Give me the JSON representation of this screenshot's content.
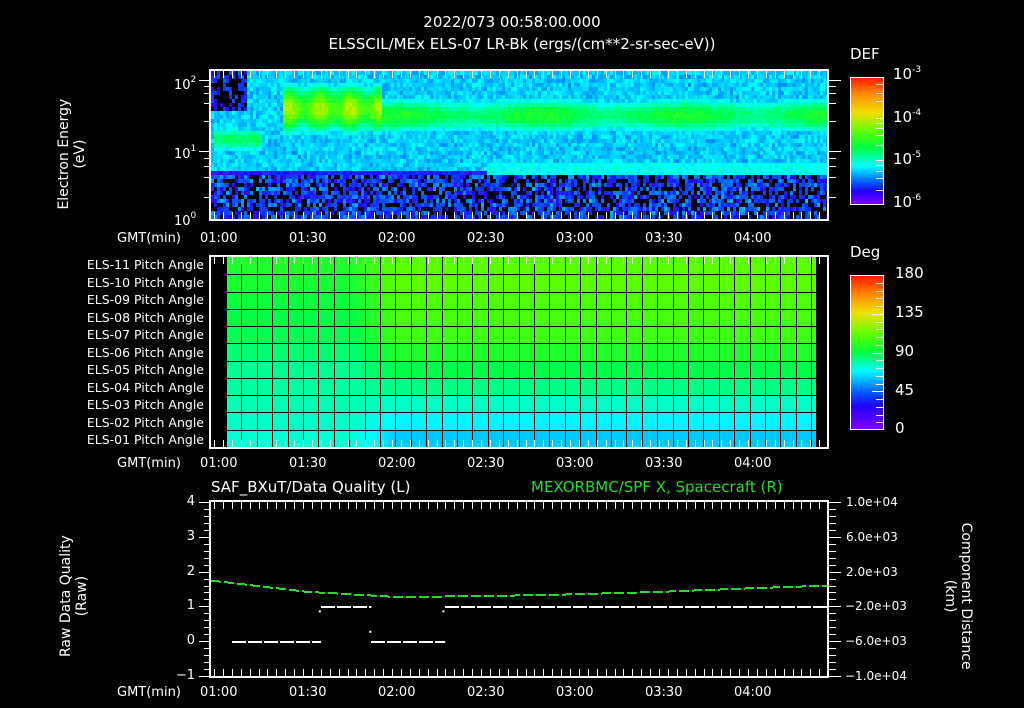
{
  "header": {
    "datetime": "2022/073 00:58:00.000",
    "subtitle": "ELSSCIL/MEx ELS-07 LR-Bk  (ergs/(cm**2-sr-sec-eV))"
  },
  "colors": {
    "background": "#000000",
    "axes": "#ffffff",
    "right_series": "#22dd22",
    "left_series": "#ffffff"
  },
  "time_axis": {
    "label": "GMT(min)",
    "ticks": [
      "01:00",
      "01:30",
      "02:00",
      "02:30",
      "03:00",
      "03:30",
      "04:00"
    ]
  },
  "panel_spectrogram": {
    "ylabel_line1": "Electron Energy",
    "ylabel_line2": "(eV)",
    "y_ticks": [
      {
        "base": "10",
        "exp": "2"
      },
      {
        "base": "10",
        "exp": "1"
      },
      {
        "base": "10",
        "exp": "0"
      }
    ],
    "colorbar": {
      "title": "DEF",
      "ticks": [
        {
          "base": "10",
          "exp": "-3"
        },
        {
          "base": "10",
          "exp": "-4"
        },
        {
          "base": "10",
          "exp": "-5"
        },
        {
          "base": "10",
          "exp": "-6"
        }
      ]
    }
  },
  "panel_pitch": {
    "rows": [
      "ELS-11 Pitch Angle",
      "ELS-10 Pitch Angle",
      "ELS-09 Pitch Angle",
      "ELS-08 Pitch Angle",
      "ELS-07 Pitch Angle",
      "ELS-06 Pitch Angle",
      "ELS-05 Pitch Angle",
      "ELS-04 Pitch Angle",
      "ELS-03 Pitch Angle",
      "ELS-02 Pitch Angle",
      "ELS-01 Pitch Angle"
    ],
    "colorbar": {
      "title": "Deg",
      "ticks": [
        "180",
        "135",
        "90",
        "45",
        "0"
      ]
    }
  },
  "panel_lines": {
    "left_title": "SAF_BXuT/Data Quality (L)",
    "right_title": "MEXORBMC/SPF X, Spacecraft (R)",
    "ylabel_left_line1": "Raw Data Quality",
    "ylabel_left_line2": "(Raw)",
    "ylabel_right_line1": "Component Distance",
    "ylabel_right_line2": "(km)",
    "y_left_ticks": [
      "4",
      "3",
      "2",
      "1",
      "0",
      "−1"
    ],
    "y_right_ticks": [
      "1.0e+04",
      "6.0e+03",
      "2.0e+03",
      "−2.0e+03",
      "−6.0e+03",
      "−1.0e+04"
    ]
  },
  "chart_data": [
    {
      "type": "heatmap",
      "title": "ELSSCIL/MEx ELS-07 LR-Bk (ergs/(cm**2-sr-sec-eV))",
      "xlabel": "GMT(min)",
      "ylabel": "Electron Energy (eV)",
      "x_ticks": [
        "01:00",
        "01:30",
        "02:00",
        "02:30",
        "03:00",
        "03:30",
        "04:00"
      ],
      "y_scale": "log",
      "ylim": [
        1,
        150
      ],
      "colorbar": {
        "label": "DEF",
        "scale": "log",
        "range": [
          1e-06,
          0.001
        ]
      },
      "features": [
        {
          "time": "01:00-01:15",
          "energy_eV": "12-20",
          "level": "~1e-4 (green)"
        },
        {
          "time": "01:20-01:50",
          "energy_eV": "25-120",
          "level": "~3e-4 (yellow-green, peak)"
        },
        {
          "time": "01:50-04:50",
          "energy_eV": "20-60",
          "level": "~1e-4 (green band)"
        },
        {
          "time": "all",
          "energy_eV": "1-4",
          "level": "~1e-6 (purple/noise)"
        }
      ]
    },
    {
      "type": "heatmap",
      "title": "ELS Pitch Angle",
      "xlabel": "GMT(min)",
      "categories": [
        "ELS-11",
        "ELS-10",
        "ELS-09",
        "ELS-08",
        "ELS-07",
        "ELS-06",
        "ELS-05",
        "ELS-04",
        "ELS-03",
        "ELS-02",
        "ELS-01"
      ],
      "colorbar": {
        "label": "Deg",
        "range": [
          0,
          180
        ]
      },
      "approx_values_deg": {
        "01:05-01:50": [
          100,
          98,
          95,
          92,
          90,
          85,
          80,
          78,
          75,
          72,
          70
        ],
        "02:00-04:45": [
          115,
          115,
          112,
          110,
          108,
          100,
          92,
          82,
          72,
          62,
          55
        ]
      }
    },
    {
      "type": "line",
      "title": "SAF_BXuT/Data Quality (L) / MEXORBMC/SPF X, Spacecraft (R)",
      "xlabel": "GMT(min)",
      "ylabel": "Raw Data Quality (Raw)",
      "ylabel_right": "Component Distance (km)",
      "ylim": [
        -1,
        4
      ],
      "ylim_right": [
        -10000,
        10000
      ],
      "series": [
        {
          "name": "Data Quality (L)",
          "axis": "left",
          "segments": [
            {
              "x": [
                "01:05",
                "01:35"
              ],
              "y": 0
            },
            {
              "x": [
                "01:35",
                "01:52"
              ],
              "y": 1
            },
            {
              "x": [
                "01:52",
                "02:17"
              ],
              "y": 0
            },
            {
              "x": [
                "02:17",
                "04:45"
              ],
              "y": 1
            }
          ]
        },
        {
          "name": "SPF X, Spacecraft (R)",
          "axis": "right",
          "x": [
            "01:00",
            "01:30",
            "02:00",
            "02:30",
            "03:00",
            "03:30",
            "04:00",
            "04:50"
          ],
          "y": [
            1000,
            -200,
            -800,
            -700,
            -500,
            -200,
            200,
            800
          ]
        }
      ]
    }
  ]
}
